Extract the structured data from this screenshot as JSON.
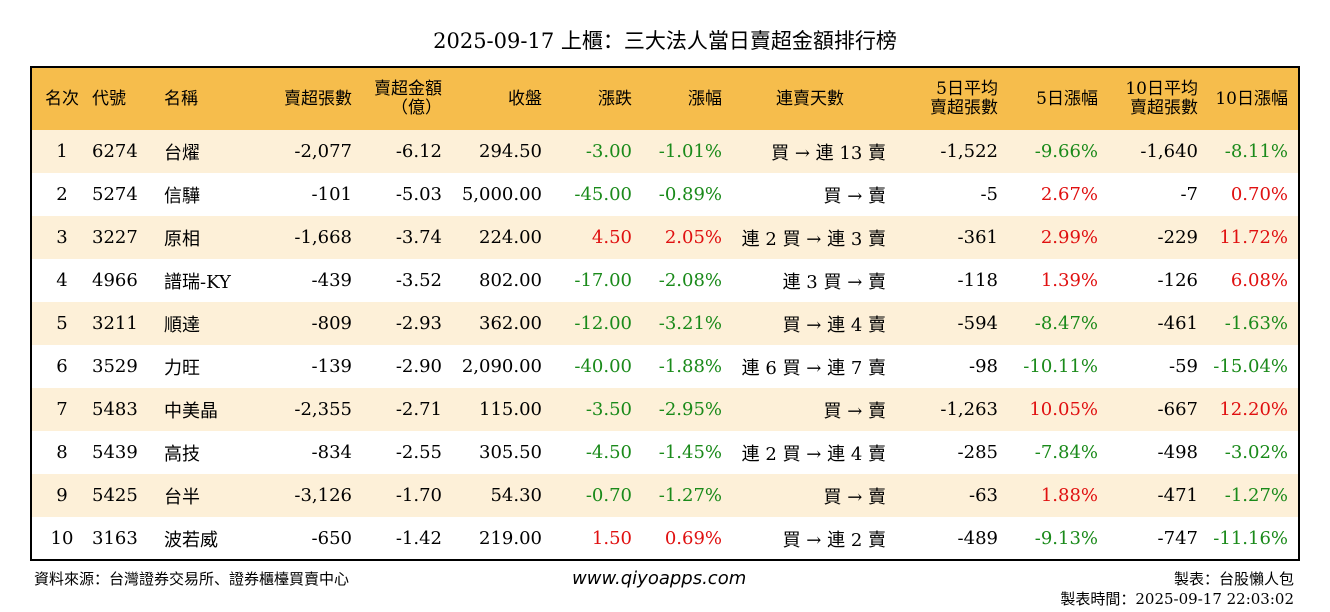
{
  "title": "2025-09-17 上櫃：三大法人當日賣超金額排行榜",
  "headers": {
    "rank": "名次",
    "code": "代號",
    "name": "名稱",
    "net_sell_lots": "賣超張數",
    "net_sell_amount_1": "賣超金額",
    "net_sell_amount_2": "（億）",
    "close": "收盤",
    "change": "漲跌",
    "change_pct": "漲幅",
    "streak": "連賣天數",
    "avg5_1": "5日平均",
    "avg5_2": "賣超張數",
    "pct5": "5日漲幅",
    "avg10_1": "10日平均",
    "avg10_2": "賣超張數",
    "pct10": "10日漲幅"
  },
  "colors": {
    "header_bg": "#f6bd4c",
    "odd_row_bg": "#fdf0d8",
    "up": "#e01010",
    "down": "#1a8a1a"
  },
  "rows": [
    {
      "rank": "1",
      "code": "6274",
      "name": "台燿",
      "lots": "-2,077",
      "amount": "-6.12",
      "close": "294.50",
      "change": "-3.00",
      "change_pct": "-1.01%",
      "streak": "買 → 連 13 賣",
      "avg5": "-1,522",
      "pct5": "-9.66%",
      "avg10": "-1,640",
      "pct10": "-8.11%",
      "c_change": "green",
      "c_pct": "green",
      "c_pct5": "green",
      "c_pct10": "green"
    },
    {
      "rank": "2",
      "code": "5274",
      "name": "信驊",
      "lots": "-101",
      "amount": "-5.03",
      "close": "5,000.00",
      "change": "-45.00",
      "change_pct": "-0.89%",
      "streak": "買 → 賣",
      "avg5": "-5",
      "pct5": "2.67%",
      "avg10": "-7",
      "pct10": "0.70%",
      "c_change": "green",
      "c_pct": "green",
      "c_pct5": "red",
      "c_pct10": "red"
    },
    {
      "rank": "3",
      "code": "3227",
      "name": "原相",
      "lots": "-1,668",
      "amount": "-3.74",
      "close": "224.00",
      "change": "4.50",
      "change_pct": "2.05%",
      "streak": "連 2 買 → 連 3 賣",
      "avg5": "-361",
      "pct5": "2.99%",
      "avg10": "-229",
      "pct10": "11.72%",
      "c_change": "red",
      "c_pct": "red",
      "c_pct5": "red",
      "c_pct10": "red"
    },
    {
      "rank": "4",
      "code": "4966",
      "name": "譜瑞-KY",
      "lots": "-439",
      "amount": "-3.52",
      "close": "802.00",
      "change": "-17.00",
      "change_pct": "-2.08%",
      "streak": "連 3 買 → 賣",
      "avg5": "-118",
      "pct5": "1.39%",
      "avg10": "-126",
      "pct10": "6.08%",
      "c_change": "green",
      "c_pct": "green",
      "c_pct5": "red",
      "c_pct10": "red"
    },
    {
      "rank": "5",
      "code": "3211",
      "name": "順達",
      "lots": "-809",
      "amount": "-2.93",
      "close": "362.00",
      "change": "-12.00",
      "change_pct": "-3.21%",
      "streak": "買 → 連 4 賣",
      "avg5": "-594",
      "pct5": "-8.47%",
      "avg10": "-461",
      "pct10": "-1.63%",
      "c_change": "green",
      "c_pct": "green",
      "c_pct5": "green",
      "c_pct10": "green"
    },
    {
      "rank": "6",
      "code": "3529",
      "name": "力旺",
      "lots": "-139",
      "amount": "-2.90",
      "close": "2,090.00",
      "change": "-40.00",
      "change_pct": "-1.88%",
      "streak": "連 6 買 → 連 7 賣",
      "avg5": "-98",
      "pct5": "-10.11%",
      "avg10": "-59",
      "pct10": "-15.04%",
      "c_change": "green",
      "c_pct": "green",
      "c_pct5": "green",
      "c_pct10": "green"
    },
    {
      "rank": "7",
      "code": "5483",
      "name": "中美晶",
      "lots": "-2,355",
      "amount": "-2.71",
      "close": "115.00",
      "change": "-3.50",
      "change_pct": "-2.95%",
      "streak": "買 → 賣",
      "avg5": "-1,263",
      "pct5": "10.05%",
      "avg10": "-667",
      "pct10": "12.20%",
      "c_change": "green",
      "c_pct": "green",
      "c_pct5": "red",
      "c_pct10": "red"
    },
    {
      "rank": "8",
      "code": "5439",
      "name": "高技",
      "lots": "-834",
      "amount": "-2.55",
      "close": "305.50",
      "change": "-4.50",
      "change_pct": "-1.45%",
      "streak": "連 2 買 → 連 4 賣",
      "avg5": "-285",
      "pct5": "-7.84%",
      "avg10": "-498",
      "pct10": "-3.02%",
      "c_change": "green",
      "c_pct": "green",
      "c_pct5": "green",
      "c_pct10": "green"
    },
    {
      "rank": "9",
      "code": "5425",
      "name": "台半",
      "lots": "-3,126",
      "amount": "-1.70",
      "close": "54.30",
      "change": "-0.70",
      "change_pct": "-1.27%",
      "streak": "買 → 賣",
      "avg5": "-63",
      "pct5": "1.88%",
      "avg10": "-471",
      "pct10": "-1.27%",
      "c_change": "green",
      "c_pct": "green",
      "c_pct5": "red",
      "c_pct10": "green"
    },
    {
      "rank": "10",
      "code": "3163",
      "name": "波若威",
      "lots": "-650",
      "amount": "-1.42",
      "close": "219.00",
      "change": "1.50",
      "change_pct": "0.69%",
      "streak": "買 → 連 2 賣",
      "avg5": "-489",
      "pct5": "-9.13%",
      "avg10": "-747",
      "pct10": "-11.16%",
      "c_change": "red",
      "c_pct": "red",
      "c_pct5": "green",
      "c_pct10": "green"
    }
  ],
  "footer": {
    "source": "資料來源：台灣證券交易所、證券櫃檯買賣中心",
    "website": "www.qiyoapps.com",
    "author": "製表：台股懶人包",
    "time": "製表時間：2025-09-17 22:03:02"
  }
}
